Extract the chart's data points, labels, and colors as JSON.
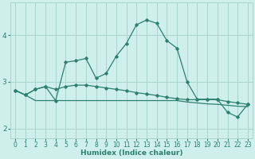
{
  "xlabel": "Humidex (Indice chaleur)",
  "x": [
    0,
    1,
    2,
    3,
    4,
    5,
    6,
    7,
    8,
    9,
    10,
    11,
    12,
    13,
    14,
    15,
    16,
    17,
    18,
    19,
    20,
    21,
    22,
    23
  ],
  "line1": [
    2.82,
    2.72,
    2.84,
    2.9,
    2.84,
    2.9,
    2.93,
    2.93,
    2.9,
    2.87,
    2.84,
    2.81,
    2.77,
    2.74,
    2.71,
    2.67,
    2.64,
    2.62,
    2.62,
    2.62,
    2.62,
    2.58,
    2.55,
    2.52
  ],
  "line2": [
    2.82,
    2.72,
    2.6,
    2.6,
    2.6,
    2.6,
    2.6,
    2.6,
    2.6,
    2.6,
    2.6,
    2.6,
    2.6,
    2.6,
    2.6,
    2.6,
    2.6,
    2.57,
    2.55,
    2.53,
    2.52,
    2.5,
    2.48,
    2.47
  ],
  "line3": [
    2.82,
    2.72,
    2.84,
    2.9,
    2.6,
    3.42,
    3.45,
    3.5,
    3.08,
    3.18,
    3.55,
    3.82,
    4.22,
    4.32,
    4.25,
    3.88,
    3.72,
    3.0,
    2.63,
    2.63,
    2.63,
    2.35,
    2.25,
    2.52
  ],
  "line_color": "#2d7f6e",
  "bg_color": "#cff0ea",
  "grid_color": "#aad4cc",
  "ylim": [
    1.8,
    4.7
  ],
  "yticks": [
    2,
    3,
    4
  ],
  "xlim": [
    -0.5,
    23.5
  ]
}
